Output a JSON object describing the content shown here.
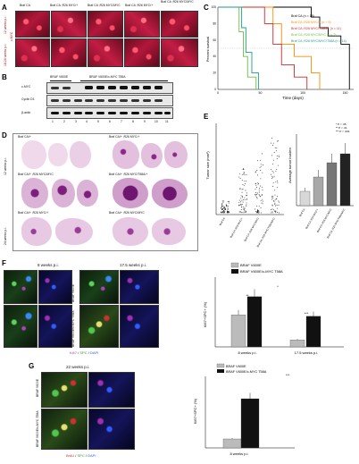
{
  "panel_labels": [
    "A",
    "B",
    "C",
    "D",
    "E",
    "F",
    "G"
  ],
  "panelA": {
    "columns": [
      "Braf CA",
      "Braf CA ;R26 MYC/+",
      "Braf CA ;R26 MYC/MYC",
      "Braf CA ;R26 MYC/+",
      "Braf CA ;R26 MYC/MYC"
    ],
    "rows": [
      "12 weeks p.i.",
      "18-24 weeks p.i."
    ],
    "marker": "c-MYC"
  },
  "panelB": {
    "header_left": "BRAF V600E",
    "header_right": "BRAF V600E/c-MYC T58A",
    "rows": [
      "c-MYC",
      "Cyclin D1",
      "β-actin"
    ],
    "lanes": [
      "1",
      "2",
      "3",
      "4",
      "5",
      "6",
      "7",
      "8",
      "9",
      "10",
      "11"
    ]
  },
  "panelC": {
    "ylabel": "Percent survival",
    "xlabel": "Time (days)",
    "xticks": [
      "0",
      "50",
      "100",
      "150"
    ],
    "yticks": [
      "0",
      "20",
      "40",
      "60",
      "80",
      "100"
    ],
    "legend": [
      {
        "label": "Braf CA (n = 18)",
        "color": "#000000"
      },
      {
        "label": "Braf CA ;R26 MYC/+ (n = 9)",
        "color": "#ff8c00"
      },
      {
        "label": "Braf CA ;R26 MYC/T58A/+ (n = 11)",
        "color": "#d62728"
      },
      {
        "label": "Braf CA ;R26 MYC/MYC (n = 7)",
        "color": "#6cbf3c"
      },
      {
        "label": "Braf CA ;R26 MYC/MYC/T58A (n = 14)",
        "color": "#1a9e8f"
      }
    ]
  },
  "panelD": {
    "rows": [
      "12 weeks p.i.",
      "24 weeks p.i."
    ],
    "labels": [
      "Braf CA/+",
      "Braf CA/+ ;R26 MYC/+",
      "Braf CA/+ ;R26 MYC/MYC",
      "Braf CA/+ ;R26 MYC/T58A/+",
      "Braf CA/+ ;R26 MYC/+",
      "Braf CA/+ ;R26 MYC/MYC"
    ]
  },
  "panelE": {
    "left_ylabel": "Tumor size (mm²)",
    "right_ylabel": "Average tumor burden",
    "groups": [
      "Braf CA",
      "Braf CA ;R26 MYC/+",
      "Braf CA ;R26 MYC/MYC",
      "Braf CA ;R26 MYC/T58A/MYC"
    ],
    "stats_legend": [
      "* P < .05",
      "** P < .01",
      "*** P < .001"
    ]
  },
  "panelF": {
    "timepoints": [
      "8 weeks p.i.",
      "17.5 weeks p.i."
    ],
    "row_labels": [
      "BRAF V600E",
      "BRAF V600E/c-MYC T58A"
    ],
    "stain_legend": [
      "Ki67",
      "/",
      "SPC",
      "/",
      "DAPI"
    ],
    "legend": [
      "BRAF V600E",
      "BRAF V600E/c-MYC T58A"
    ],
    "ylabel": "Ki67+SPC+ (%)",
    "sig": [
      "*",
      "**",
      "***"
    ]
  },
  "panelG": {
    "timepoint": "22 weeks p.i.",
    "row_labels": [
      "BRAF V600E",
      "BRAF V600E/c-MYC T58A"
    ],
    "stain_legend": [
      "BrdU",
      "/",
      "SPC",
      "/",
      "DAPI"
    ],
    "legend": [
      "BRAF V600E",
      "BRAF V600E/c-MYC T58A"
    ],
    "ylabel": "Ki67+SPC+ (%)",
    "xlabel": "8 weeks p.i.",
    "sig": "***"
  },
  "chart_data": [
    {
      "type": "line",
      "title": "",
      "xlabel": "Time (days)",
      "ylabel": "Percent survival",
      "xlim": [
        0,
        160
      ],
      "ylim": [
        0,
        100
      ],
      "series": [
        {
          "name": "Braf CA (n = 18)",
          "points": [
            [
              0,
              100
            ],
            [
              110,
              100
            ],
            [
              110,
              88
            ],
            [
              120,
              88
            ],
            [
              120,
              75
            ],
            [
              130,
              75
            ],
            [
              130,
              65
            ],
            [
              145,
              65
            ],
            [
              145,
              55
            ],
            [
              155,
              55
            ],
            [
              155,
              0
            ]
          ]
        },
        {
          "name": "Braf CA ;R26 MYC/+ (n = 9)",
          "points": [
            [
              0,
              100
            ],
            [
              65,
              100
            ],
            [
              65,
              80
            ],
            [
              75,
              80
            ],
            [
              75,
              55
            ],
            [
              90,
              55
            ],
            [
              90,
              40
            ],
            [
              110,
              40
            ],
            [
              110,
              20
            ],
            [
              120,
              20
            ],
            [
              120,
              0
            ]
          ]
        },
        {
          "name": "Braf CA ;R26 MYC/T58A/+ (n = 11)",
          "points": [
            [
              0,
              100
            ],
            [
              55,
              100
            ],
            [
              55,
              80
            ],
            [
              65,
              80
            ],
            [
              65,
              55
            ],
            [
              75,
              55
            ],
            [
              75,
              30
            ],
            [
              90,
              30
            ],
            [
              90,
              15
            ],
            [
              105,
              15
            ],
            [
              105,
              0
            ]
          ]
        },
        {
          "name": "Braf CA ;R26 MYC/MYC (n = 7)",
          "points": [
            [
              0,
              100
            ],
            [
              25,
              100
            ],
            [
              25,
              70
            ],
            [
              30,
              70
            ],
            [
              30,
              40
            ],
            [
              35,
              40
            ],
            [
              35,
              15
            ],
            [
              45,
              15
            ],
            [
              45,
              0
            ]
          ]
        },
        {
          "name": "Braf CA ;R26 MYC/MYC/T58A (n = 14)",
          "points": [
            [
              0,
              100
            ],
            [
              28,
              100
            ],
            [
              28,
              75
            ],
            [
              33,
              75
            ],
            [
              33,
              45
            ],
            [
              40,
              45
            ],
            [
              40,
              20
            ],
            [
              48,
              20
            ],
            [
              48,
              0
            ]
          ]
        }
      ]
    },
    {
      "type": "bar",
      "title": "",
      "ylabel": "Average tumor burden",
      "categories": [
        "Braf CA",
        "Braf CA ;R26 MYC/+",
        "Braf CA ;R26 MYC/MYC",
        "Braf CA ;R26 MYC/T58A/MYC"
      ],
      "values": [
        0.8,
        1.6,
        2.4,
        2.9
      ],
      "errors": [
        0.2,
        0.4,
        0.5,
        0.6
      ],
      "ylim": [
        0,
        4
      ]
    },
    {
      "type": "bar",
      "title": "",
      "ylabel": "Ki67+SPC+ (%)",
      "categories": [
        "8 weeks p.i.",
        "17.5 weeks p.i."
      ],
      "series": [
        {
          "name": "BRAF V600E",
          "values": [
            2.3,
            0.5
          ]
        },
        {
          "name": "BRAF V600E/c-MYC T58A",
          "values": [
            3.6,
            2.2
          ]
        }
      ],
      "ylim": [
        0,
        5
      ]
    },
    {
      "type": "bar",
      "title": "",
      "ylabel": "Ki67+SPC+ (%)",
      "categories": [
        "8 weeks p.i."
      ],
      "series": [
        {
          "name": "BRAF V600E",
          "values": [
            1.0
          ]
        },
        {
          "name": "BRAF V600E/c-MYC T58A",
          "values": [
            5.5
          ]
        }
      ],
      "ylim": [
        0,
        8
      ]
    }
  ]
}
